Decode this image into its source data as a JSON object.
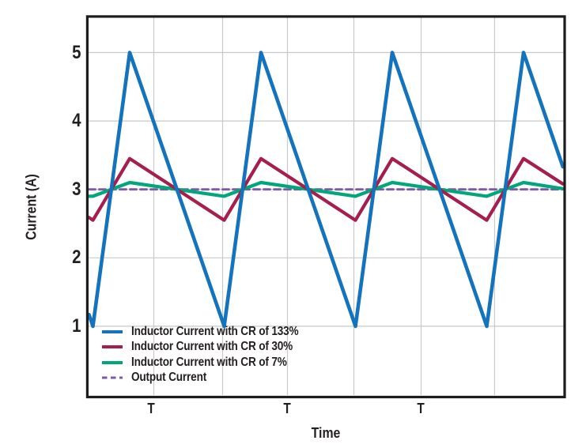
{
  "window": {
    "background": "#ffffff"
  },
  "style": {
    "axis_color": "#1C1C1C",
    "grid_color": "#C8C9CB",
    "text_color": "#231F20"
  },
  "chart_data": {
    "type": "line",
    "title": "",
    "xlabel": "Time",
    "ylabel": "Current (A)",
    "x_axis_note": "time axis in multiples of the switching period T",
    "xlim_T": [
      0,
      3.61
    ],
    "ylim_A": [
      0,
      5.5
    ],
    "yticks_A": [
      5,
      4,
      3,
      2,
      1
    ],
    "xticks": [
      {
        "t": 0.47,
        "label": "T"
      },
      {
        "t": 1.51,
        "label": "T"
      },
      {
        "t": 2.53,
        "label": "T"
      }
    ],
    "gridlines": {
      "x_t": [
        0.494,
        1.018,
        1.512,
        2.018,
        2.53,
        3.09
      ],
      "y_A": [
        1,
        2,
        3,
        4,
        5
      ]
    },
    "output_current_A": 3,
    "legend": {
      "position": "inside-bottom-left",
      "entries": [
        "Inductor Current with CR of 133%",
        "Inductor Current with CR of 30%",
        "Inductor Current with CR of 7%",
        "Output Current"
      ]
    },
    "series": [
      {
        "name": "Inductor Current with CR of 133%",
        "color": "#1373BC",
        "line_style": "solid",
        "line_width": 4.6,
        "ripple_ratio_pct": 133,
        "min_A": 1,
        "max_A": 5,
        "points_t_A": [
          [
            0,
            1.17
          ],
          [
            0.03,
            1
          ],
          [
            0.31,
            5
          ],
          [
            1.03,
            1
          ],
          [
            1.31,
            5
          ],
          [
            2.03,
            1
          ],
          [
            2.31,
            5
          ],
          [
            3.03,
            1
          ],
          [
            3.31,
            5
          ],
          [
            3.61,
            3.33
          ]
        ]
      },
      {
        "name": "Inductor Current with CR of 30%",
        "color": "#A51E4D",
        "line_style": "solid",
        "line_width": 4.2,
        "ripple_ratio_pct": 30,
        "min_A": 2.55,
        "max_A": 3.45,
        "points_t_A": [
          [
            0,
            2.59
          ],
          [
            0.03,
            2.55
          ],
          [
            0.31,
            3.45
          ],
          [
            1.03,
            2.55
          ],
          [
            1.31,
            3.45
          ],
          [
            2.03,
            2.55
          ],
          [
            2.31,
            3.45
          ],
          [
            3.03,
            2.55
          ],
          [
            3.31,
            3.45
          ],
          [
            3.61,
            3.08
          ]
        ]
      },
      {
        "name": "Inductor Current with CR of 7%",
        "color": "#00A77B",
        "line_style": "solid",
        "line_width": 4.2,
        "ripple_ratio_pct": 7,
        "min_A": 2.9,
        "max_A": 3.1,
        "points_t_A": [
          [
            0,
            2.9
          ],
          [
            0.03,
            2.9
          ],
          [
            0.31,
            3.1
          ],
          [
            1.03,
            2.9
          ],
          [
            1.31,
            3.1
          ],
          [
            2.03,
            2.9
          ],
          [
            2.31,
            3.1
          ],
          [
            3.03,
            2.9
          ],
          [
            3.31,
            3.1
          ],
          [
            3.61,
            3.01
          ]
        ]
      },
      {
        "name": "Output Current",
        "color": "#7E59A6",
        "line_style": "dashed",
        "line_width": 2.8,
        "value_A": 3,
        "points_t_A": [
          [
            0,
            3
          ],
          [
            3.61,
            3
          ]
        ]
      }
    ]
  }
}
